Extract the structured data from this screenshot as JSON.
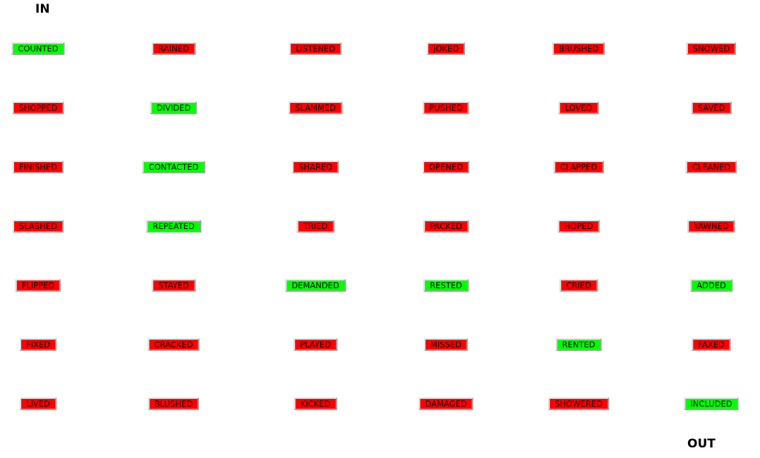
{
  "labels": {
    "in": "IN",
    "out": "OUT"
  },
  "colors": {
    "correct": "#00ff00",
    "incorrect": "#ff0000"
  },
  "grid": [
    [
      {
        "word": "COUNTED",
        "state": "correct"
      },
      {
        "word": "RAINED",
        "state": "incorrect"
      },
      {
        "word": "LISTENED",
        "state": "incorrect"
      },
      {
        "word": "JOKED",
        "state": "incorrect"
      },
      {
        "word": "BRUSHED",
        "state": "incorrect"
      },
      {
        "word": "SNOWED",
        "state": "incorrect"
      }
    ],
    [
      {
        "word": "SHOPPED",
        "state": "incorrect"
      },
      {
        "word": "DIVIDED",
        "state": "correct"
      },
      {
        "word": "SLAMMED",
        "state": "incorrect"
      },
      {
        "word": "PUSHED",
        "state": "incorrect"
      },
      {
        "word": "LOVED",
        "state": "incorrect"
      },
      {
        "word": "SAVED",
        "state": "incorrect"
      }
    ],
    [
      {
        "word": "FINISHED",
        "state": "incorrect"
      },
      {
        "word": "CONTACTED",
        "state": "correct"
      },
      {
        "word": "SHARED",
        "state": "incorrect"
      },
      {
        "word": "OPENED",
        "state": "incorrect"
      },
      {
        "word": "CLAPPED",
        "state": "incorrect"
      },
      {
        "word": "CLEANED",
        "state": "incorrect"
      }
    ],
    [
      {
        "word": "SLASHED",
        "state": "incorrect"
      },
      {
        "word": "REPEATED",
        "state": "correct"
      },
      {
        "word": "TRIED",
        "state": "incorrect"
      },
      {
        "word": "PACKED",
        "state": "incorrect"
      },
      {
        "word": "HOPED",
        "state": "incorrect"
      },
      {
        "word": "YAWNED",
        "state": "incorrect"
      }
    ],
    [
      {
        "word": "FLIPPED",
        "state": "incorrect"
      },
      {
        "word": "STAYED",
        "state": "incorrect"
      },
      {
        "word": "DEMANDED",
        "state": "correct"
      },
      {
        "word": "RESTED",
        "state": "correct"
      },
      {
        "word": "CRIED",
        "state": "incorrect"
      },
      {
        "word": "ADDED",
        "state": "correct"
      }
    ],
    [
      {
        "word": "FIXED",
        "state": "incorrect"
      },
      {
        "word": "CRACKED",
        "state": "incorrect"
      },
      {
        "word": "PLAYED",
        "state": "incorrect"
      },
      {
        "word": "MISSED",
        "state": "incorrect"
      },
      {
        "word": "RENTED",
        "state": "correct"
      },
      {
        "word": "FAXED",
        "state": "incorrect"
      }
    ],
    [
      {
        "word": "LIVED",
        "state": "incorrect"
      },
      {
        "word": "BLUSHED",
        "state": "incorrect"
      },
      {
        "word": "KICKED",
        "state": "incorrect"
      },
      {
        "word": "DAMAGED",
        "state": "incorrect"
      },
      {
        "word": "SHOWERED",
        "state": "incorrect"
      },
      {
        "word": "INCLUDED",
        "state": "correct"
      }
    ]
  ]
}
